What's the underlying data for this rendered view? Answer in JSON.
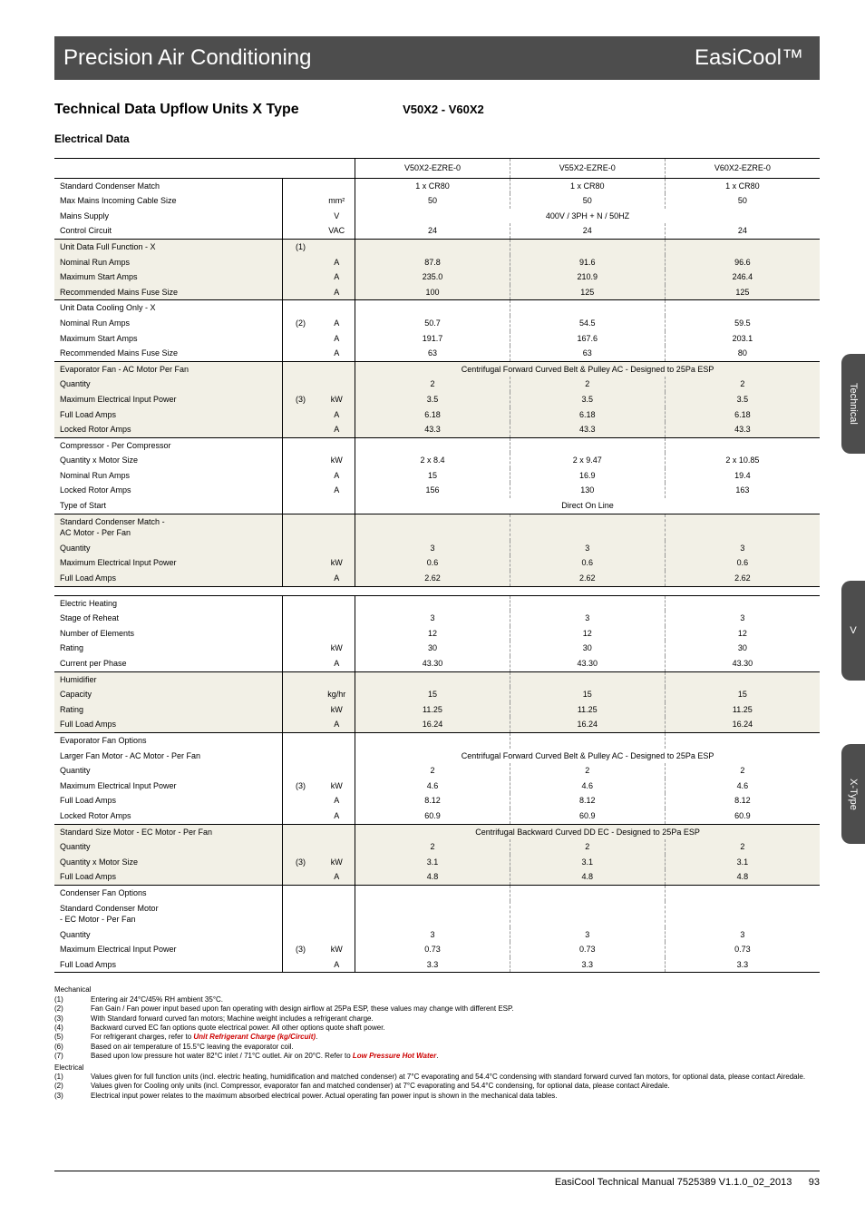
{
  "header": {
    "left": "Precision Air Conditioning",
    "right": "EasiCool™"
  },
  "title": {
    "main": "Technical Data Upflow Units X Type",
    "range": "V50X2 - V60X2"
  },
  "subsection": "Electrical Data",
  "columns": {
    "label": "",
    "v1": "V50X2-EZRE-0",
    "v2": "V55X2-EZRE-0",
    "v3": "V60X2-EZRE-0"
  },
  "rows": [
    {
      "sep": true,
      "label": "Standard Condenser Match",
      "v1": "1 x CR80",
      "v2": "1 x CR80",
      "v3": "1 x CR80"
    },
    {
      "label": "Max Mains Incoming Cable Size",
      "unit": "mm²",
      "v1": "50",
      "v2": "50",
      "v3": "50"
    },
    {
      "label": "Mains Supply",
      "unit": "V",
      "span": "400V / 3PH + N / 50HZ"
    },
    {
      "label": "Control Circuit",
      "unit": "VAC",
      "v1": "24",
      "v2": "24",
      "v3": "24"
    },
    {
      "shaded": true,
      "sep": true,
      "label": "Unit Data Full Function - X",
      "note": "(1)"
    },
    {
      "shaded": true,
      "label": "Nominal Run Amps",
      "unit": "A",
      "v1": "87.8",
      "v2": "91.6",
      "v3": "96.6"
    },
    {
      "shaded": true,
      "label": "Maximum Start Amps",
      "unit": "A",
      "v1": "235.0",
      "v2": "210.9",
      "v3": "246.4"
    },
    {
      "shaded": true,
      "label": "Recommended Mains Fuse Size",
      "unit": "A",
      "v1": "100",
      "v2": "125",
      "v3": "125"
    },
    {
      "sep": true,
      "label": "Unit Data Cooling Only - X"
    },
    {
      "label": "Nominal Run Amps",
      "note": "(2)",
      "unit": "A",
      "v1": "50.7",
      "v2": "54.5",
      "v3": "59.5"
    },
    {
      "label": "Maximum Start Amps",
      "unit": "A",
      "v1": "191.7",
      "v2": "167.6",
      "v3": "203.1"
    },
    {
      "label": "Recommended Mains Fuse Size",
      "unit": "A",
      "v1": "63",
      "v2": "63",
      "v3": "80"
    },
    {
      "shaded": true,
      "sep": true,
      "label": "Evaporator Fan - AC Motor Per Fan",
      "span": "Centrifugal Forward Curved Belt & Pulley AC - Designed to 25Pa ESP"
    },
    {
      "shaded": true,
      "label": "Quantity",
      "v1": "2",
      "v2": "2",
      "v3": "2"
    },
    {
      "shaded": true,
      "label": "Maximum Electrical Input Power",
      "note": "(3)",
      "unit": "kW",
      "v1": "3.5",
      "v2": "3.5",
      "v3": "3.5"
    },
    {
      "shaded": true,
      "label": "Full Load Amps",
      "unit": "A",
      "v1": "6.18",
      "v2": "6.18",
      "v3": "6.18"
    },
    {
      "shaded": true,
      "label": "Locked Rotor Amps",
      "unit": "A",
      "v1": "43.3",
      "v2": "43.3",
      "v3": "43.3"
    },
    {
      "sep": true,
      "label": "Compressor - Per Compressor"
    },
    {
      "label": "Quantity x Motor Size",
      "unit": "kW",
      "v1": "2 x 8.4",
      "v2": "2 x 9.47",
      "v3": "2 x 10.85"
    },
    {
      "label": "Nominal Run Amps",
      "unit": "A",
      "v1": "15",
      "v2": "16.9",
      "v3": "19.4"
    },
    {
      "label": "Locked Rotor Amps",
      "unit": "A",
      "v1": "156",
      "v2": "130",
      "v3": "163"
    },
    {
      "label": "Type of Start",
      "span": "Direct On Line"
    },
    {
      "shaded": true,
      "sep": true,
      "label": "Standard Condenser Match -<br>AC Motor - Per Fan"
    },
    {
      "shaded": true,
      "label": "Quantity",
      "v1": "3",
      "v2": "3",
      "v3": "3"
    },
    {
      "shaded": true,
      "label": "Maximum Electrical Input Power",
      "unit": "kW",
      "v1": "0.6",
      "v2": "0.6",
      "v3": "0.6"
    },
    {
      "shaded": true,
      "label": "Full Load Amps",
      "unit": "A",
      "v1": "2.62",
      "v2": "2.62",
      "v3": "2.62"
    },
    {
      "blank": true
    },
    {
      "sep": true,
      "label": "Electric Heating"
    },
    {
      "label": "Stage of Reheat",
      "v1": "3",
      "v2": "3",
      "v3": "3"
    },
    {
      "label": "Number of Elements",
      "v1": "12",
      "v2": "12",
      "v3": "12"
    },
    {
      "label": "Rating",
      "unit": "kW",
      "v1": "30",
      "v2": "30",
      "v3": "30"
    },
    {
      "label": "Current per Phase",
      "unit": "A",
      "v1": "43.30",
      "v2": "43.30",
      "v3": "43.30"
    },
    {
      "shaded": true,
      "sep": true,
      "label": "Humidifier"
    },
    {
      "shaded": true,
      "label": "Capacity",
      "unit": "kg/hr",
      "v1": "15",
      "v2": "15",
      "v3": "15"
    },
    {
      "shaded": true,
      "label": "Rating",
      "unit": "kW",
      "v1": "11.25",
      "v2": "11.25",
      "v3": "11.25"
    },
    {
      "shaded": true,
      "label": "Full Load Amps",
      "unit": "A",
      "v1": "16.24",
      "v2": "16.24",
      "v3": "16.24"
    },
    {
      "sep": true,
      "label": "Evaporator Fan Options"
    },
    {
      "label": "Larger Fan Motor - AC Motor - Per Fan",
      "span": "Centrifugal Forward Curved Belt & Pulley AC - Designed to 25Pa ESP"
    },
    {
      "label": "Quantity",
      "v1": "2",
      "v2": "2",
      "v3": "2"
    },
    {
      "label": "Maximum Electrical Input Power",
      "note": "(3)",
      "unit": "kW",
      "v1": "4.6",
      "v2": "4.6",
      "v3": "4.6"
    },
    {
      "label": "Full Load Amps",
      "unit": "A",
      "v1": "8.12",
      "v2": "8.12",
      "v3": "8.12"
    },
    {
      "label": "Locked Rotor Amps",
      "unit": "A",
      "v1": "60.9",
      "v2": "60.9",
      "v3": "60.9"
    },
    {
      "shaded": true,
      "sep": true,
      "label": "Standard Size Motor - EC Motor - Per Fan",
      "span": "Centrifugal Backward Curved DD EC - Designed to 25Pa ESP"
    },
    {
      "shaded": true,
      "label": "Quantity",
      "v1": "2",
      "v2": "2",
      "v3": "2"
    },
    {
      "shaded": true,
      "label": "Quantity x Motor Size",
      "note": "(3)",
      "unit": "kW",
      "v1": "3.1",
      "v2": "3.1",
      "v3": "3.1"
    },
    {
      "shaded": true,
      "label": "Full Load Amps",
      "unit": "A",
      "v1": "4.8",
      "v2": "4.8",
      "v3": "4.8"
    },
    {
      "sep": true,
      "label": "Condenser Fan Options"
    },
    {
      "label": "Standard Condenser Motor<br>- EC Motor - Per Fan"
    },
    {
      "label": "Quantity",
      "v1": "3",
      "v2": "3",
      "v3": "3"
    },
    {
      "label": "Maximum Electrical Input Power",
      "note": "(3)",
      "unit": "kW",
      "v1": "0.73",
      "v2": "0.73",
      "v3": "0.73"
    },
    {
      "label": "Full Load Amps",
      "unit": "A",
      "v1": "3.3",
      "v2": "3.3",
      "v3": "3.3"
    }
  ],
  "footnotes": {
    "mechanical": {
      "head": "Mechanical",
      "items": [
        {
          "n": "(1)",
          "t": "Entering air 24°C/45% RH ambient 35°C."
        },
        {
          "n": "(2)",
          "t": "Fan Gain / Fan power input based upon fan operating with design airflow at 25Pa ESP, these values may change with different ESP."
        },
        {
          "n": "(3)",
          "t": "With Standard forward curved fan motors; Machine weight includes a refrigerant charge."
        },
        {
          "n": "(4)",
          "t": "Backward curved EC fan options quote electrical power. All other options quote shaft power."
        },
        {
          "n": "(5)",
          "t": "For refrigerant charges, refer to ",
          "link": "Unit Refrigerant Charge (kg/Circuit)",
          "after": "."
        },
        {
          "n": "(6)",
          "t": "Based on air temperature of 15.5°C leaving the evaporator coil."
        },
        {
          "n": "(7)",
          "t": "Based upon low pressure hot water 82°C inlet / 71°C outlet. Air on 20°C. Refer to ",
          "link": "Low Pressure Hot Water",
          "after": "."
        }
      ]
    },
    "electrical": {
      "head": "Electrical",
      "items": [
        {
          "n": "(1)",
          "t": "Values given for full function units (incl. electric heating, humidification and matched condenser) at 7°C evaporating and 54.4°C condensing with standard forward curved fan motors, for optional data, please contact Airedale."
        },
        {
          "n": "(2)",
          "t": "Values given for Cooling only units (incl. Compressor, evaporator fan and matched condenser) at 7°C evaporating and 54.4°C condensing, for optional data, please contact Airedale."
        },
        {
          "n": "(3)",
          "t": "Electrical input power relates to the maximum absorbed electrical power. Actual operating fan power input is shown in the mechanical data tables."
        }
      ]
    }
  },
  "footer": {
    "doc": "EasiCool Technical Manual 7525389 V1.1.0_02_2013",
    "page": "93"
  },
  "tabs": {
    "technical": "Technical",
    "v": "V",
    "xtype": "X-Type"
  }
}
